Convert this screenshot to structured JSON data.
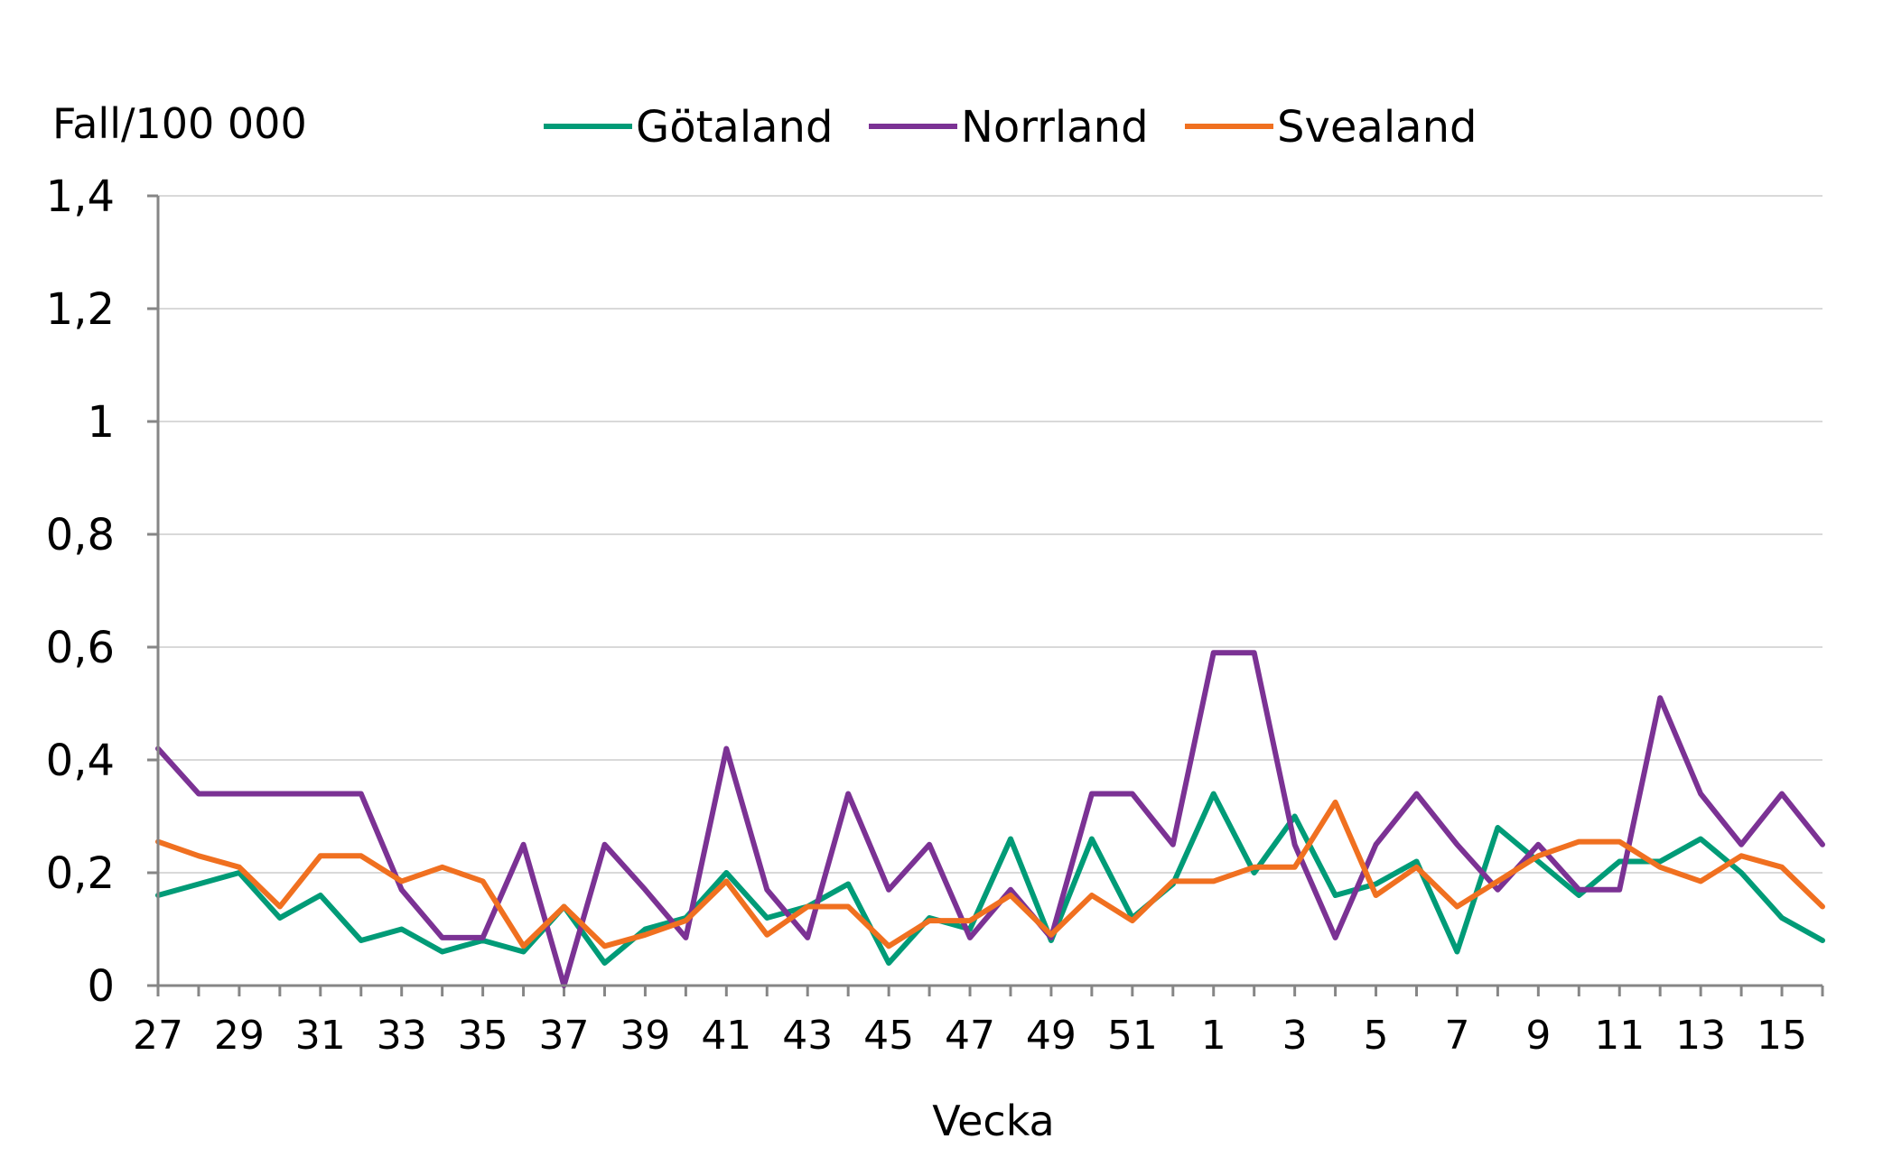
{
  "chart_data": {
    "type": "line",
    "ylabel": "Fall/100 000",
    "xlabel": "Vecka",
    "ylim": [
      0,
      1.4
    ],
    "yticks": [
      "0",
      "0,2",
      "0,4",
      "0,6",
      "0,8",
      "1",
      "1,2",
      "1,4"
    ],
    "ytick_values": [
      0,
      0.2,
      0.4,
      0.6,
      0.8,
      1.0,
      1.2,
      1.4
    ],
    "grid": true,
    "legend": "top",
    "x": [
      27,
      28,
      29,
      30,
      31,
      32,
      33,
      34,
      35,
      36,
      37,
      38,
      39,
      40,
      41,
      42,
      43,
      44,
      45,
      46,
      47,
      48,
      49,
      50,
      51,
      52,
      1,
      2,
      3,
      4,
      5,
      6,
      7,
      8,
      9,
      10,
      11,
      12,
      13,
      14,
      15,
      16
    ],
    "xtick_labels": [
      "27",
      "29",
      "31",
      "33",
      "35",
      "37",
      "39",
      "41",
      "43",
      "45",
      "47",
      "49",
      "51",
      "1",
      "3",
      "5",
      "7",
      "9",
      "11",
      "13",
      "15"
    ],
    "series": [
      {
        "name": "Götaland",
        "color": "#009B77",
        "values": [
          0.16,
          0.18,
          0.2,
          0.12,
          0.16,
          0.08,
          0.1,
          0.06,
          0.08,
          0.06,
          0.14,
          0.04,
          0.1,
          0.12,
          0.2,
          0.12,
          0.14,
          0.18,
          0.04,
          0.12,
          0.1,
          0.26,
          0.08,
          0.26,
          0.12,
          0.18,
          0.34,
          0.2,
          0.3,
          0.16,
          0.18,
          0.22,
          0.06,
          0.28,
          0.22,
          0.16,
          0.22,
          0.22,
          0.26,
          0.2,
          0.12,
          0.08
        ]
      },
      {
        "name": "Norrland",
        "color": "#7B3294",
        "values": [
          0.42,
          0.34,
          0.34,
          0.34,
          0.34,
          0.34,
          0.17,
          0.085,
          0.085,
          0.25,
          0.0,
          0.25,
          0.17,
          0.085,
          0.42,
          0.17,
          0.085,
          0.34,
          0.17,
          0.25,
          0.085,
          0.17,
          0.085,
          0.34,
          0.34,
          0.25,
          0.59,
          0.59,
          0.25,
          0.085,
          0.25,
          0.34,
          0.25,
          0.17,
          0.25,
          0.17,
          0.17,
          0.51,
          0.34,
          0.25,
          0.34,
          0.25
        ]
      },
      {
        "name": "Svealand",
        "color": "#F07020",
        "values": [
          0.255,
          0.23,
          0.21,
          0.14,
          0.23,
          0.23,
          0.185,
          0.21,
          0.185,
          0.07,
          0.14,
          0.07,
          0.09,
          0.115,
          0.185,
          0.09,
          0.14,
          0.14,
          0.07,
          0.115,
          0.115,
          0.16,
          0.09,
          0.16,
          0.115,
          0.185,
          0.185,
          0.21,
          0.21,
          0.325,
          0.16,
          0.21,
          0.14,
          0.185,
          0.23,
          0.255,
          0.255,
          0.21,
          0.185,
          0.23,
          0.21,
          0.14
        ]
      }
    ]
  }
}
